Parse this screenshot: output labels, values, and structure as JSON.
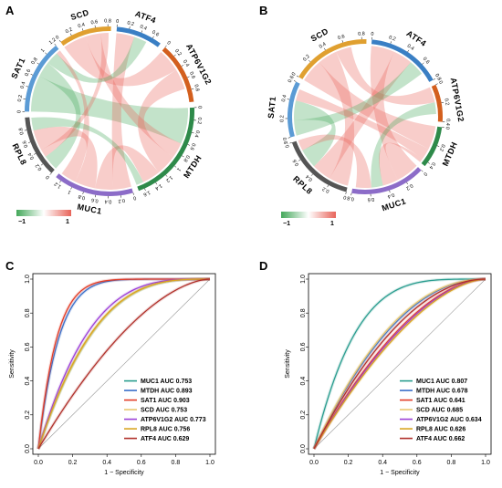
{
  "panels": {
    "A": "A",
    "B": "B",
    "C": "C",
    "D": "D"
  },
  "colors": {
    "positive": "#e8645a",
    "negative": "#44a85a"
  },
  "chart_data": [
    {
      "type": "chord",
      "panel": "A",
      "genes": [
        {
          "name": "ATF4",
          "value": 0.75,
          "color": "#3a7fc4",
          "ticks": [
            "0",
            "0.2",
            "0.4",
            "0.6"
          ]
        },
        {
          "name": "ATP6V1G2",
          "value": 1.0,
          "color": "#d35f1e",
          "ticks": [
            "0",
            "0.2",
            "0.4",
            "0.6",
            "0.8"
          ]
        },
        {
          "name": "MTDH",
          "value": 1.7,
          "color": "#2e8a4a",
          "ticks": [
            "0",
            "0.2",
            "0.4",
            "0.6",
            "0.8",
            "1",
            "1.2",
            "1.4",
            "1.6"
          ]
        },
        {
          "name": "MUC1",
          "value": 1.3,
          "color": "#8c6cc8",
          "ticks": [
            "0",
            "0.2",
            "0.4",
            "0.6",
            "0.8",
            "1",
            "1.2"
          ]
        },
        {
          "name": "RPL8",
          "value": 1.0,
          "color": "#555555",
          "ticks": [
            "0",
            "0.2",
            "0.4",
            "0.6",
            "0.8"
          ]
        },
        {
          "name": "SAT1",
          "value": 1.2,
          "color": "#5b9bd5",
          "ticks": [
            "0",
            "0.2",
            "0.4",
            "0.6",
            "0.8",
            "1",
            "1.2"
          ]
        },
        {
          "name": "SCD",
          "value": 0.85,
          "color": "#e0a030",
          "ticks": [
            "0",
            "0.2",
            "0.4",
            "0.6",
            "0.8"
          ]
        }
      ],
      "links": [
        {
          "from": "SAT1",
          "to": "MTDH",
          "value": 0.7,
          "sign": "neg"
        },
        {
          "from": "SAT1",
          "to": "RPL8",
          "value": 0.3,
          "sign": "neg"
        },
        {
          "from": "SCD",
          "to": "ATP6V1G2",
          "value": 0.45,
          "sign": "pos"
        },
        {
          "from": "SCD",
          "to": "MTDH",
          "value": 0.3,
          "sign": "pos"
        },
        {
          "from": "SCD",
          "to": "RPL8",
          "value": 0.15,
          "sign": "pos"
        },
        {
          "from": "ATF4",
          "to": "MUC1",
          "value": 0.35,
          "sign": "pos"
        },
        {
          "from": "ATF4",
          "to": "SAT1",
          "value": 0.25,
          "sign": "neg"
        },
        {
          "from": "ATP6V1G2",
          "to": "MTDH",
          "value": 0.4,
          "sign": "pos"
        },
        {
          "from": "MUC1",
          "to": "MTDH",
          "value": 0.35,
          "sign": "pos"
        },
        {
          "from": "MUC1",
          "to": "RPL8",
          "value": 0.4,
          "sign": "pos"
        },
        {
          "from": "MUC1",
          "to": "SAT1",
          "value": 0.3,
          "sign": "pos"
        },
        {
          "from": "RPL8",
          "to": "MTDH",
          "value": 0.25,
          "sign": "neg"
        }
      ],
      "colorbar": {
        "min_label": "−1",
        "max_label": "1"
      }
    },
    {
      "type": "chord",
      "panel": "B",
      "genes": [
        {
          "name": "ATF4",
          "value": 0.8,
          "color": "#3a7fc4",
          "ticks": [
            "0",
            "0.2",
            "0.4",
            "0.6",
            "0.8"
          ]
        },
        {
          "name": "ATP6V1G2",
          "value": 0.4,
          "color": "#d35f1e",
          "ticks": [
            "0",
            "0.2",
            "0.4"
          ]
        },
        {
          "name": "MTDH",
          "value": 0.45,
          "color": "#2e8a4a",
          "ticks": [
            "0",
            "0.2",
            "0.4"
          ]
        },
        {
          "name": "MUC1",
          "value": 0.8,
          "color": "#8c6cc8",
          "ticks": [
            "0",
            "0.2",
            "0.4",
            "0.6",
            "0.8"
          ]
        },
        {
          "name": "RPL8",
          "value": 0.8,
          "color": "#555555",
          "ticks": [
            "0",
            "0.2",
            "0.4",
            "0.6",
            "0.8"
          ]
        },
        {
          "name": "SAT1",
          "value": 0.6,
          "color": "#5b9bd5",
          "ticks": [
            "0",
            "0.2",
            "0.4",
            "0.6"
          ]
        },
        {
          "name": "SCD",
          "value": 0.85,
          "color": "#e0a030",
          "ticks": [
            "0",
            "0.2",
            "0.4",
            "0.6",
            "0.8"
          ]
        }
      ],
      "links": [
        {
          "from": "SCD",
          "to": "MTDH",
          "value": 0.3,
          "sign": "pos"
        },
        {
          "from": "SCD",
          "to": "RPL8",
          "value": 0.25,
          "sign": "pos"
        },
        {
          "from": "SCD",
          "to": "ATP6V1G2",
          "value": 0.2,
          "sign": "pos"
        },
        {
          "from": "ATF4",
          "to": "MUC1",
          "value": 0.3,
          "sign": "pos"
        },
        {
          "from": "ATF4",
          "to": "RPL8",
          "value": 0.25,
          "sign": "pos"
        },
        {
          "from": "ATF4",
          "to": "SAT1",
          "value": 0.2,
          "sign": "neg"
        },
        {
          "from": "SAT1",
          "to": "RPL8",
          "value": 0.25,
          "sign": "neg"
        },
        {
          "from": "SAT1",
          "to": "MTDH",
          "value": 0.15,
          "sign": "pos"
        },
        {
          "from": "MUC1",
          "to": "MTDH",
          "value": 0.2,
          "sign": "pos"
        },
        {
          "from": "MUC1",
          "to": "ATP6V1G2",
          "value": 0.15,
          "sign": "neg"
        },
        {
          "from": "RPL8",
          "to": "MUC1",
          "value": 0.2,
          "sign": "pos"
        }
      ],
      "colorbar": {
        "min_label": "−1",
        "max_label": "1"
      }
    },
    {
      "type": "line",
      "panel": "C",
      "xlabel": "1 − Specificity",
      "ylabel": "Sensitivity",
      "xlim": [
        0,
        1
      ],
      "ylim": [
        0,
        1
      ],
      "xticks": [
        "0.0",
        "0.2",
        "0.4",
        "0.6",
        "0.8",
        "1.0"
      ],
      "yticks": [
        "0.0",
        "0.2",
        "0.4",
        "0.6",
        "0.8",
        "1.0"
      ],
      "series": [
        {
          "name": "MUC1 AUC 0.753",
          "auc": 0.753,
          "color": "#2a9d8f"
        },
        {
          "name": "MTDH AUC 0.893",
          "auc": 0.893,
          "color": "#3b6fc9"
        },
        {
          "name": "SAT1 AUC 0.903",
          "auc": 0.903,
          "color": "#e23d28"
        },
        {
          "name": "SCD AUC 0.753",
          "auc": 0.753,
          "color": "#e8c870"
        },
        {
          "name": "ATP6V1G2 AUC 0.773",
          "auc": 0.773,
          "color": "#9b3fd6"
        },
        {
          "name": "RPL8 AUC 0.756",
          "auc": 0.756,
          "color": "#d9a520"
        },
        {
          "name": "ATF4 AUC 0.629",
          "auc": 0.629,
          "color": "#b0302a"
        }
      ]
    },
    {
      "type": "line",
      "panel": "D",
      "xlabel": "1 − Specificity",
      "ylabel": "Sensitivity",
      "xlim": [
        0,
        1
      ],
      "ylim": [
        0,
        1
      ],
      "xticks": [
        "0.0",
        "0.2",
        "0.4",
        "0.6",
        "0.8",
        "1.0"
      ],
      "yticks": [
        "0.0",
        "0.2",
        "0.4",
        "0.6",
        "0.8",
        "1.0"
      ],
      "series": [
        {
          "name": "MUC1 AUC 0.807",
          "auc": 0.807,
          "color": "#2a9d8f"
        },
        {
          "name": "MTDH AUC 0.678",
          "auc": 0.678,
          "color": "#3b6fc9"
        },
        {
          "name": "SAT1 AUC 0.641",
          "auc": 0.641,
          "color": "#e23d28"
        },
        {
          "name": "SCD AUC 0.685",
          "auc": 0.685,
          "color": "#e8c870"
        },
        {
          "name": "ATP6V1G2 AUC 0.634",
          "auc": 0.634,
          "color": "#9b3fd6"
        },
        {
          "name": "RPL8 AUC 0.626",
          "auc": 0.626,
          "color": "#d9a520"
        },
        {
          "name": "ATF4 AUC 0.662",
          "auc": 0.662,
          "color": "#b0302a"
        }
      ]
    }
  ]
}
